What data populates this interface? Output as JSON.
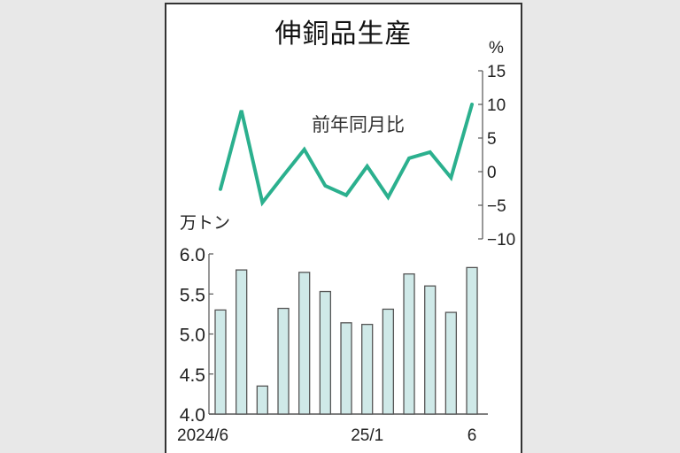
{
  "title": "伸銅品生産",
  "line_label": "前年同月比",
  "line_unit": "%",
  "bar_unit": "万トン",
  "colors": {
    "line": "#2bb08e",
    "bar_fill": "#cfe9e8",
    "bar_stroke": "#555555",
    "axis": "#555555"
  },
  "chart_data": [
    {
      "type": "line",
      "title": "前年同月比",
      "ylabel": "%",
      "ylim": [
        -10,
        15
      ],
      "yticks": [
        15,
        10,
        5,
        0,
        -5,
        -10
      ],
      "ytick_labels": [
        "15",
        "10",
        "5",
        "0",
        "−5",
        "−10"
      ],
      "x": [
        "2024/6",
        "2024/7",
        "2024/8",
        "2024/9",
        "2024/10",
        "2024/11",
        "2024/12",
        "2025/1",
        "2025/2",
        "2025/3",
        "2025/4",
        "2025/5",
        "2025/6"
      ],
      "values": [
        -2.6,
        9.1,
        -4.6,
        -0.6,
        3.3,
        -2.1,
        -3.5,
        0.8,
        -3.8,
        2.0,
        2.9,
        -0.9,
        10.0
      ],
      "axis_position": "right"
    },
    {
      "type": "bar",
      "title": "伸銅品生産",
      "ylabel": "万トン",
      "ylim": [
        4.0,
        6.0
      ],
      "yticks": [
        6.0,
        5.5,
        5.0,
        4.5,
        4.0
      ],
      "ytick_labels": [
        "6.0",
        "5.5",
        "5.0",
        "4.5",
        "4.0"
      ],
      "categories": [
        "2024/6",
        "2024/7",
        "2024/8",
        "2024/9",
        "2024/10",
        "2024/11",
        "2024/12",
        "2025/1",
        "2025/2",
        "2025/3",
        "2025/4",
        "2025/5",
        "2025/6"
      ],
      "xtick_labels": [
        {
          "index": 0,
          "label": "2024/6"
        },
        {
          "index": 7,
          "label": "25/1"
        },
        {
          "index": 12,
          "label": "6"
        }
      ],
      "values": [
        5.3,
        5.8,
        4.35,
        5.32,
        5.77,
        5.53,
        5.14,
        5.12,
        5.31,
        5.75,
        5.6,
        5.27,
        5.83
      ],
      "axis_position": "left"
    }
  ]
}
